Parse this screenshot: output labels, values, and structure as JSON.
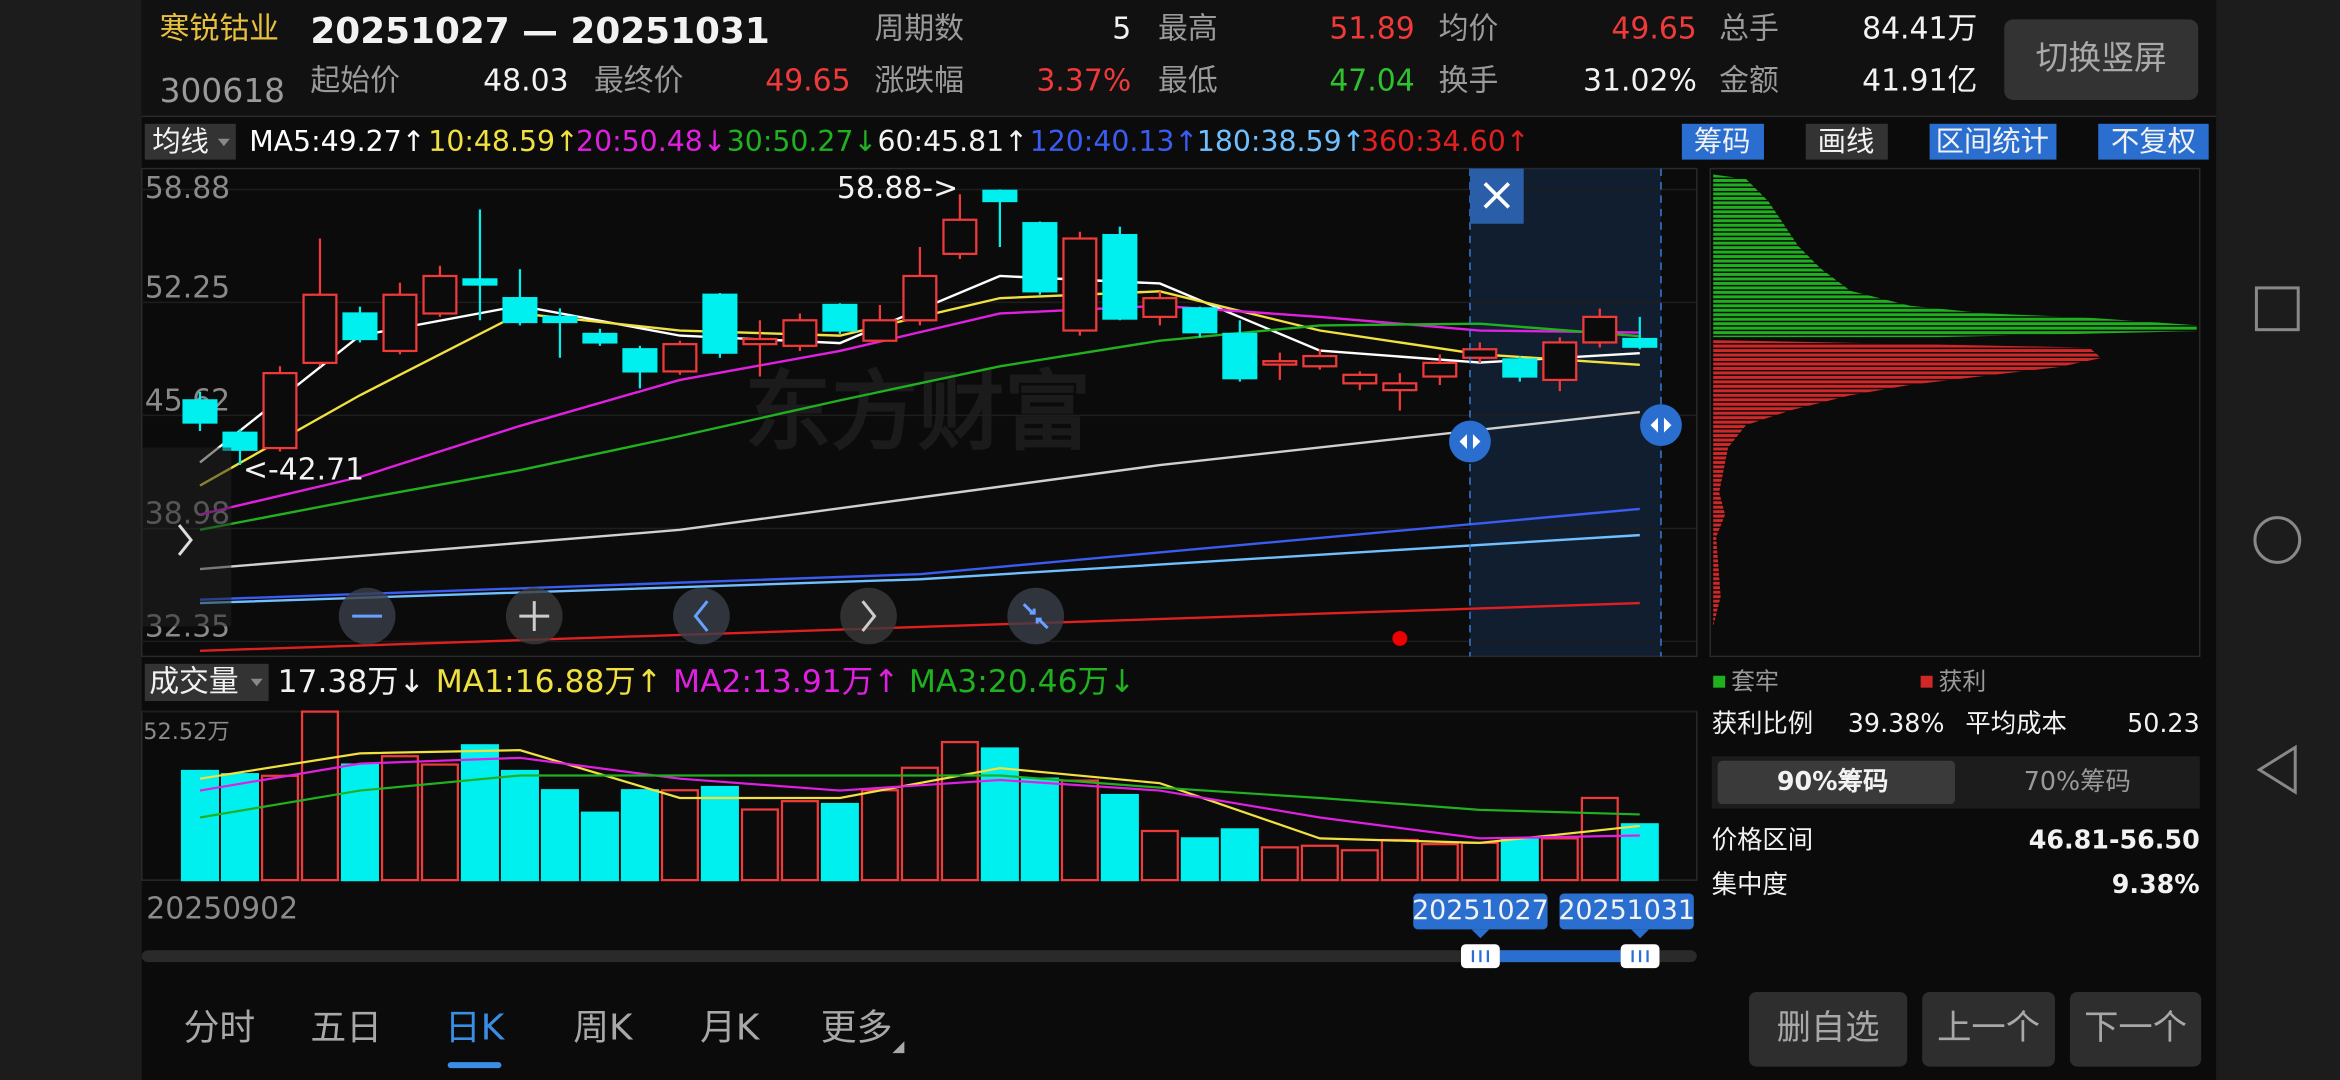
{
  "header": {
    "name": "寒锐钴业",
    "code": "300618",
    "range": "20251027 — 20251031",
    "fields": [
      {
        "label": "起始价",
        "value": "48.03"
      },
      {
        "label": "最终价",
        "value": "49.65"
      },
      {
        "label": "周期数",
        "value": "5"
      },
      {
        "label": "涨跌幅",
        "value": "3.37%"
      },
      {
        "label": "最高",
        "value": "51.89"
      },
      {
        "label": "最低",
        "value": "47.04"
      },
      {
        "label": "均价",
        "value": "49.65"
      },
      {
        "label": "换手",
        "value": "31.02%"
      },
      {
        "label": "总手",
        "value": "84.41万"
      },
      {
        "label": "金额",
        "value": "41.91亿"
      }
    ],
    "rotate_button": "切换竖屏"
  },
  "toolbar": {
    "ma_button": "均线",
    "tools": [
      "筹码",
      "画线",
      "区间统计",
      "不复权"
    ]
  },
  "watermark": "东方财富",
  "chart_data": [
    {
      "type": "candlestick",
      "ylim": [
        32.35,
        58.88
      ],
      "yticks": [
        32.35,
        38.98,
        45.62,
        52.25,
        58.88
      ],
      "grid": true,
      "up_color": "#f03a3a",
      "down_color": "#00f0f0",
      "high_label": "58.88->",
      "low_label": "<-42.71",
      "open": [
        46.5,
        44.6,
        43.7,
        48.7,
        51.6,
        49.4,
        51.6,
        53.6,
        52.5,
        51.4,
        50.4,
        49.5,
        48.2,
        52.7,
        49.8,
        49.7,
        52.1,
        50.0,
        51.2,
        55.1,
        58.8,
        56.9,
        50.6,
        56.2,
        51.4,
        51.9,
        50.4,
        48.6,
        48.5,
        47.5,
        47.1,
        47.9,
        49.0,
        48.9,
        47.7,
        49.9,
        50.1
      ],
      "high": [
        47.0,
        44.8,
        48.5,
        56.0,
        52.0,
        53.4,
        54.4,
        57.7,
        54.2,
        51.9,
        50.7,
        49.7,
        50.0,
        52.8,
        51.2,
        51.6,
        52.2,
        52.1,
        55.5,
        58.6,
        58.88,
        57.0,
        56.4,
        56.7,
        52.9,
        52.0,
        51.2,
        49.3,
        49.5,
        48.2,
        48.1,
        49.2,
        49.9,
        49.1,
        50.2,
        51.89,
        51.4
      ],
      "low": [
        44.7,
        42.71,
        43.5,
        48.5,
        49.9,
        49.2,
        51.4,
        51.2,
        50.9,
        49.0,
        49.7,
        47.2,
        48.0,
        49.0,
        47.9,
        49.4,
        50.4,
        49.9,
        50.9,
        54.8,
        55.5,
        52.7,
        50.3,
        51.2,
        50.9,
        50.2,
        47.6,
        47.7,
        48.3,
        47.1,
        45.9,
        47.4,
        48.7,
        47.6,
        47.04,
        49.6,
        49.5
      ],
      "close": [
        45.2,
        43.6,
        48.1,
        52.7,
        50.1,
        52.7,
        53.8,
        53.3,
        51.1,
        51.1,
        49.9,
        48.2,
        49.8,
        49.3,
        50.1,
        51.2,
        50.6,
        51.2,
        53.8,
        57.1,
        58.2,
        52.9,
        56.0,
        51.3,
        52.5,
        50.5,
        47.8,
        48.8,
        49.1,
        48.0,
        47.5,
        48.7,
        49.5,
        47.9,
        49.9,
        51.4,
        49.65
      ],
      "series": [
        {
          "name": "MA5:49.27↑",
          "color": "#ffffff",
          "x": [
            0,
            4,
            8,
            12,
            16,
            20,
            24,
            28,
            32,
            36
          ],
          "values": [
            42.86,
            50.3,
            52.05,
            50.3,
            49.86,
            53.8,
            53.36,
            49.42,
            48.72,
            49.27
          ]
        },
        {
          "name": "10:48.59↑",
          "color": "#f0e040",
          "x": [
            0,
            4,
            8,
            12,
            16,
            20,
            24,
            28,
            32,
            36
          ],
          "values": [
            41.5,
            46.8,
            51.6,
            50.6,
            50.3,
            52.5,
            52.9,
            50.6,
            49.2,
            48.59
          ]
        },
        {
          "name": "20:50.48↓",
          "color": "#e020e0",
          "x": [
            0,
            4,
            8,
            12,
            16,
            20,
            24,
            28,
            32,
            36
          ],
          "values": [
            39.8,
            42.0,
            45.0,
            47.7,
            49.4,
            51.6,
            52.05,
            51.4,
            50.6,
            50.48
          ]
        },
        {
          "name": "30:50.27↓",
          "color": "#20b020",
          "x": [
            0,
            4,
            8,
            12,
            16,
            20,
            24,
            28,
            32,
            36
          ],
          "values": [
            38.9,
            40.7,
            42.4,
            44.4,
            46.5,
            48.5,
            50.0,
            50.9,
            51.0,
            50.27
          ]
        },
        {
          "name": "60:45.81↑",
          "color": "#d0d0d0",
          "x": [
            0,
            12,
            24,
            36
          ],
          "values": [
            36.6,
            38.9,
            42.7,
            45.81
          ]
        },
        {
          "name": "120:40.13↑",
          "color": "#3a5cf0",
          "x": [
            0,
            18,
            36
          ],
          "values": [
            34.8,
            36.3,
            40.13
          ]
        },
        {
          "name": "180:38.59↑",
          "color": "#70c0ff",
          "x": [
            0,
            18,
            36
          ],
          "values": [
            34.6,
            36.0,
            38.59
          ]
        },
        {
          "name": "360:34.60↑",
          "color": "#e02020",
          "x": [
            0,
            36
          ],
          "values": [
            31.8,
            34.6
          ]
        }
      ]
    },
    {
      "type": "bar",
      "title": "成交量",
      "current": "17.38万↓",
      "ylim": [
        0,
        52.52
      ],
      "yticks": [
        {
          "value": 52.52,
          "label": "52.52万"
        }
      ],
      "categories": [
        "20250902",
        null,
        null,
        null,
        null,
        null,
        null,
        null,
        null,
        null,
        null,
        null,
        null,
        null,
        null,
        null,
        null,
        null,
        null,
        null,
        null,
        null,
        null,
        null,
        null,
        null,
        null,
        null,
        null,
        null,
        null,
        null,
        null,
        null,
        null,
        null,
        null
      ],
      "values": [
        34,
        33,
        32.5,
        52.5,
        36,
        38.6,
        36,
        42,
        34,
        28,
        21,
        28,
        28,
        29,
        22,
        24.6,
        23.7,
        28,
        35,
        43,
        41,
        31.6,
        31,
        26.5,
        15.3,
        13,
        15.8,
        10.2,
        10.7,
        9.3,
        12.5,
        11.2,
        11.6,
        12.6,
        13,
        25.6,
        17.38
      ],
      "series": [
        {
          "name": "MA1:16.88万↑",
          "color": "#f0e040",
          "x": [
            0,
            4,
            8,
            12,
            16,
            20,
            24,
            28,
            32,
            36
          ],
          "values": [
            31.6,
            39.5,
            40.5,
            25.6,
            25.6,
            34.9,
            30.2,
            13.0,
            11.6,
            16.88
          ]
        },
        {
          "name": "MA2:13.91万↑",
          "color": "#e020e0",
          "x": [
            0,
            4,
            8,
            12,
            16,
            20,
            24,
            28,
            32,
            36
          ],
          "values": [
            27.9,
            36.3,
            38.1,
            31.6,
            27.9,
            31.2,
            27.9,
            19.5,
            13.0,
            13.91
          ]
        },
        {
          "name": "MA3:20.46万↓",
          "color": "#20b020",
          "x": [
            0,
            4,
            8,
            12,
            16,
            20,
            24,
            28,
            32,
            36
          ],
          "values": [
            19.5,
            27.9,
            32.6,
            32.6,
            32.6,
            32.6,
            28.8,
            25.6,
            21.9,
            20.46
          ]
        }
      ]
    }
  ],
  "selection": {
    "start": "20251027",
    "end": "20251031"
  },
  "chip_panel": {
    "legend": [
      "套牢",
      "获利"
    ],
    "profit_ratio_label": "获利比例",
    "profit_ratio": "39.38%",
    "avg_cost_label": "平均成本",
    "avg_cost": "50.23",
    "tabs": [
      "90%筹码",
      "70%筹码"
    ],
    "price_range_label": "价格区间",
    "price_range": "46.81-56.50",
    "concentration_label": "集中度",
    "concentration": "9.38%"
  },
  "bottom": {
    "tabs": [
      "分时",
      "五日",
      "日K",
      "周K",
      "月K",
      "更多"
    ],
    "buttons": [
      "删自选",
      "上一个",
      "下一个"
    ]
  }
}
